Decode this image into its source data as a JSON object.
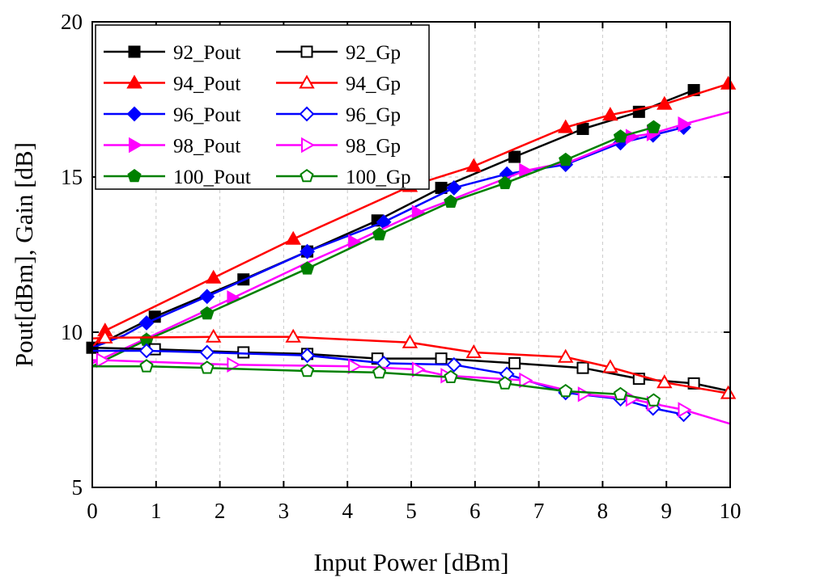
{
  "chart_data": {
    "type": "line",
    "xlabel": "Input Power [dBm]",
    "ylabel": "Pout[dBm], Gain [dB]",
    "xlim": [
      0,
      10
    ],
    "ylim": [
      5,
      20
    ],
    "xticks": [
      "0",
      "1",
      "2",
      "3",
      "4",
      "5",
      "6",
      "7",
      "8",
      "9",
      "10"
    ],
    "yticks": [
      "5",
      "10",
      "15",
      "20"
    ],
    "grid": true,
    "legend_position": "top-left",
    "series": [
      {
        "name": "92_Pout",
        "color": "#000000",
        "marker": "square",
        "filled": true,
        "x": [
          0,
          0.98,
          2.37,
          3.37,
          4.47,
          5.47,
          6.62,
          7.69,
          8.57,
          9.43
        ],
        "y": [
          9.5,
          10.5,
          11.7,
          12.6,
          13.6,
          14.65,
          15.65,
          16.55,
          17.1,
          17.8
        ]
      },
      {
        "name": "94_Pout",
        "color": "#ff0000",
        "marker": "triangle",
        "filled": true,
        "x": [
          0,
          0.2,
          1.9,
          3.15,
          4.98,
          5.98,
          7.42,
          8.12,
          8.97,
          9.97
        ],
        "y": [
          9.5,
          10.05,
          11.75,
          13.0,
          14.7,
          15.35,
          16.6,
          17.0,
          17.35,
          18.0
        ],
        "marker_x": [
          0.2,
          1.9,
          3.15,
          4.98,
          5.98,
          7.42,
          8.12,
          8.97,
          9.97
        ]
      },
      {
        "name": "96_Pout",
        "color": "#0000ff",
        "marker": "diamond",
        "filled": true,
        "x": [
          0,
          0.5,
          0.85,
          1.8,
          3.37,
          4.57,
          5.67,
          6.5,
          7.42,
          8.28,
          8.79,
          9.27
        ],
        "y": [
          9.5,
          9.9,
          10.3,
          11.15,
          12.6,
          13.55,
          14.65,
          15.1,
          15.4,
          16.1,
          16.35,
          16.6
        ],
        "marker_x": [
          0.85,
          1.8,
          3.37,
          4.57,
          5.67,
          6.5,
          7.42,
          8.28,
          8.79,
          9.27
        ]
      },
      {
        "name": "98_Pout",
        "color": "#ff00ff",
        "marker": "triangle-right",
        "filled": true,
        "x": [
          0,
          0.85,
          2.2,
          3.33,
          4.1,
          5.1,
          5.55,
          6.78,
          7.5,
          8.45,
          8.78,
          9.27,
          10
        ],
        "y": [
          9.0,
          9.8,
          11.1,
          12.2,
          12.9,
          13.85,
          14.2,
          15.2,
          15.5,
          16.3,
          16.4,
          16.7,
          17.1
        ],
        "marker_x": [
          2.2,
          4.1,
          5.1,
          6.78,
          8.45,
          8.78,
          9.27
        ]
      },
      {
        "name": "100_Pout",
        "color": "#008000",
        "marker": "pentagon",
        "filled": true,
        "x": [
          0,
          0.85,
          1.8,
          3.37,
          4.5,
          5.62,
          6.47,
          7.42,
          8.28,
          8.8
        ],
        "y": [
          8.9,
          9.75,
          10.6,
          12.05,
          13.15,
          14.2,
          14.8,
          15.55,
          16.3,
          16.6
        ],
        "marker_x": [
          0.85,
          1.8,
          3.37,
          4.5,
          5.62,
          6.47,
          7.42,
          8.28,
          8.8
        ]
      },
      {
        "name": "92_Gp",
        "color": "#000000",
        "marker": "square",
        "filled": false,
        "x": [
          0,
          0.98,
          2.37,
          3.37,
          4.47,
          5.47,
          6.62,
          7.69,
          8.57,
          9.43,
          10
        ],
        "y": [
          9.5,
          9.45,
          9.35,
          9.3,
          9.15,
          9.15,
          9.0,
          8.85,
          8.5,
          8.35,
          8.1
        ],
        "marker_x": [
          0.98,
          2.37,
          3.37,
          4.47,
          5.47,
          6.62,
          7.69,
          8.57,
          9.43
        ]
      },
      {
        "name": "94_Gp",
        "color": "#ff0000",
        "marker": "triangle",
        "filled": false,
        "x": [
          0,
          0.2,
          1.9,
          3.15,
          4.98,
          5.98,
          7.42,
          8.12,
          8.97,
          9.97
        ],
        "y": [
          9.8,
          9.82,
          9.85,
          9.85,
          9.67,
          9.35,
          9.2,
          8.87,
          8.38,
          8.03
        ],
        "marker_x": [
          0.2,
          1.9,
          3.15,
          4.98,
          5.98,
          7.42,
          8.12,
          8.97,
          9.97
        ]
      },
      {
        "name": "96_Gp",
        "color": "#0000ff",
        "marker": "diamond",
        "filled": false,
        "x": [
          0,
          0.85,
          1.8,
          3.37,
          4.57,
          5.67,
          6.5,
          7.42,
          8.28,
          8.79,
          9.27
        ],
        "y": [
          9.4,
          9.4,
          9.35,
          9.25,
          9.0,
          8.95,
          8.65,
          8.05,
          7.85,
          7.55,
          7.35
        ],
        "marker_x": [
          0.85,
          1.8,
          3.37,
          4.57,
          5.67,
          6.5,
          7.42,
          8.28,
          8.79,
          9.27
        ]
      },
      {
        "name": "98_Gp",
        "color": "#ff00ff",
        "marker": "triangle-right",
        "filled": false,
        "x": [
          0,
          0.15,
          2.2,
          4.1,
          5.1,
          5.55,
          6.78,
          7.7,
          8.45,
          8.78,
          9.27,
          10
        ],
        "y": [
          9.1,
          9.1,
          8.95,
          8.9,
          8.8,
          8.6,
          8.45,
          8.0,
          7.85,
          7.7,
          7.5,
          7.05
        ],
        "marker_x": [
          0.15,
          2.2,
          4.1,
          5.1,
          5.55,
          6.78,
          7.7,
          8.45,
          8.78,
          9.27
        ]
      },
      {
        "name": "100_Gp",
        "color": "#008000",
        "marker": "pentagon",
        "filled": false,
        "x": [
          0,
          0.85,
          1.8,
          3.37,
          4.5,
          5.62,
          6.47,
          7.42,
          8.28,
          8.8
        ],
        "y": [
          8.9,
          8.9,
          8.85,
          8.75,
          8.7,
          8.55,
          8.35,
          8.1,
          8.0,
          7.8
        ],
        "marker_x": [
          0.85,
          1.8,
          3.37,
          4.5,
          5.62,
          6.47,
          7.42,
          8.28,
          8.8
        ]
      }
    ],
    "legend_columns": [
      [
        "92_Pout",
        "94_Pout",
        "96_Pout",
        "98_Pout",
        "100_Pout"
      ],
      [
        "92_Gp",
        "94_Gp",
        "96_Gp",
        "98_Gp",
        "100_Gp"
      ]
    ]
  }
}
